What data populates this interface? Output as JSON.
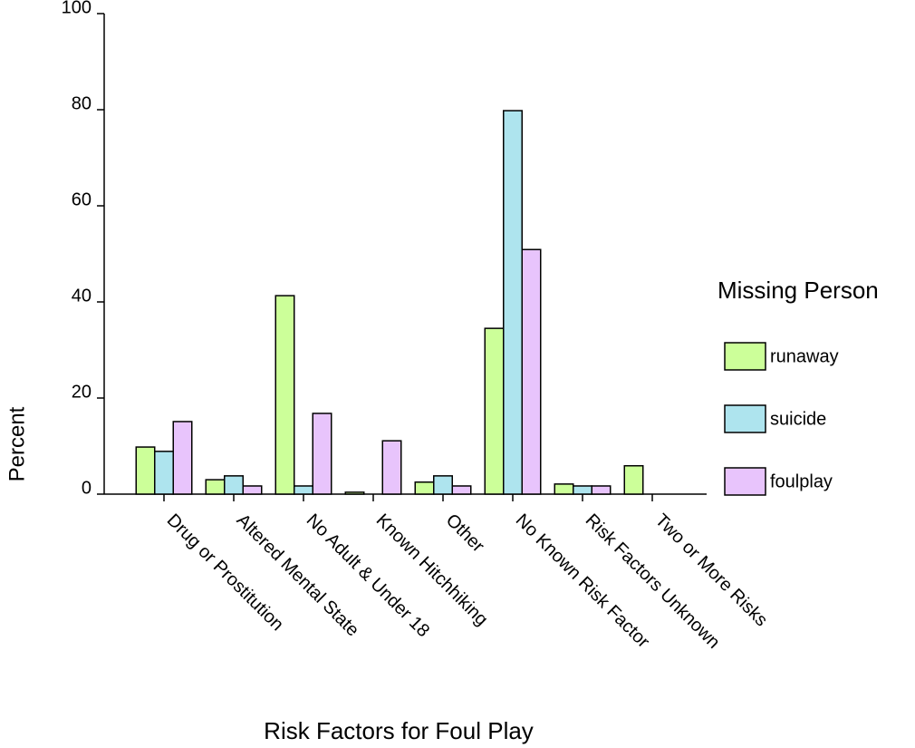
{
  "chart_data": {
    "type": "bar",
    "x_label": "Risk Factors for Foul Play",
    "y_label": "Percent",
    "legend_title": "Missing Person",
    "categories": [
      "Drug or Prostitution",
      "Altered Mental State",
      "No Adult & Under 18",
      "Known Hitchhiking",
      "Other",
      "No Known Risk Factor",
      "Risk Factors Unknown",
      "Two or More Risks"
    ],
    "series": [
      {
        "name": "runaway",
        "color": "#ccff99",
        "values": [
          9.8,
          3.0,
          41.3,
          0.4,
          2.5,
          34.5,
          2.1,
          5.9
        ]
      },
      {
        "name": "suicide",
        "color": "#aee4ee",
        "values": [
          8.9,
          3.8,
          1.7,
          0,
          3.8,
          79.8,
          1.7,
          0
        ]
      },
      {
        "name": "foulplay",
        "color": "#e8c4fc",
        "values": [
          15.1,
          1.7,
          16.8,
          11.1,
          1.7,
          50.9,
          1.7,
          0
        ]
      }
    ],
    "ylim": [
      0,
      100
    ],
    "yticks": [
      0,
      20,
      40,
      60,
      80,
      100
    ]
  }
}
